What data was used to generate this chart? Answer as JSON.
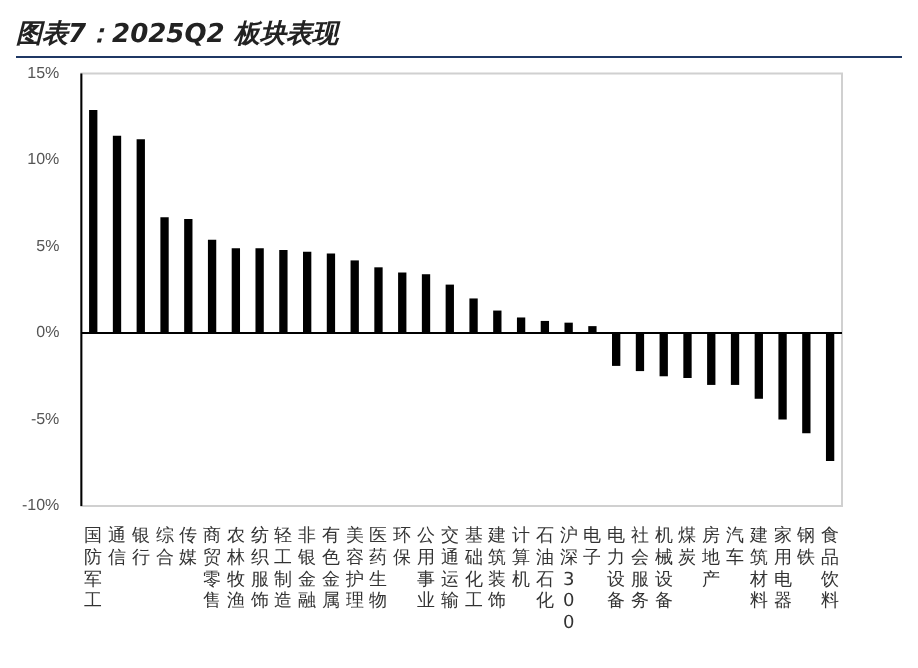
{
  "chart_data": {
    "type": "bar",
    "title": "图表7：2025Q2 板块表现",
    "categories": [
      "国防军工",
      "通信",
      "银行",
      "综合",
      "传媒",
      "商贸零售",
      "农林牧渔",
      "纺织服饰",
      "轻工制造",
      "非银金融",
      "有色金属",
      "美容护理",
      "医药生物",
      "环保",
      "公用事业",
      "交通运输",
      "基础化工",
      "建筑装饰",
      "计算机",
      "石油石化",
      "沪深300",
      "电子",
      "电力设备",
      "社会服务",
      "机械设备",
      "煤炭",
      "房地产",
      "汽车",
      "建筑材料",
      "家用电器",
      "钢铁",
      "食品饮料"
    ],
    "values": [
      12.9,
      11.4,
      11.2,
      6.7,
      6.6,
      5.4,
      4.9,
      4.9,
      4.8,
      4.7,
      4.6,
      4.2,
      3.8,
      3.5,
      3.4,
      2.8,
      2.0,
      1.3,
      0.9,
      0.7,
      0.6,
      0.4,
      -1.9,
      -2.2,
      -2.5,
      -2.6,
      -3.0,
      -3.0,
      -3.8,
      -5.0,
      -5.8,
      -7.4
    ],
    "color": "#000000",
    "ylim": [
      -10,
      15
    ],
    "yticks": [
      {
        "value": -10,
        "label": "-10%"
      },
      {
        "value": -5,
        "label": "-5%"
      },
      {
        "value": 0,
        "label": "0%"
      },
      {
        "value": 5,
        "label": "5%"
      },
      {
        "value": 10,
        "label": "10%"
      },
      {
        "value": 15,
        "label": "15%"
      }
    ],
    "legend": false
  }
}
